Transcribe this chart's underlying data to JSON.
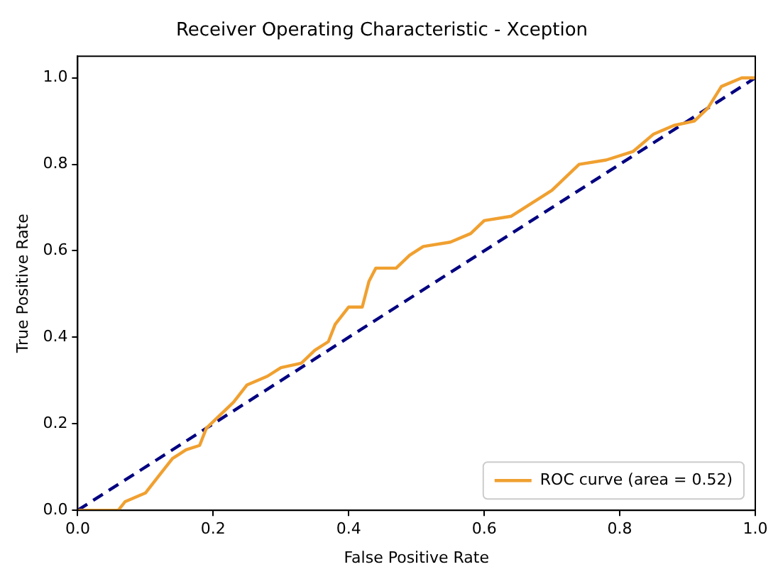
{
  "chart_data": {
    "type": "line",
    "title": "Receiver Operating Characteristic - Xception",
    "xlabel": "False Positive Rate",
    "ylabel": "True Positive Rate",
    "series": [
      {
        "name": "ROC curve (area = 0.52)",
        "color": "#f0a030",
        "line_style": "solid",
        "x": [
          0,
          0.06,
          0.07,
          0.1,
          0.12,
          0.14,
          0.16,
          0.18,
          0.19,
          0.21,
          0.23,
          0.25,
          0.28,
          0.3,
          0.33,
          0.35,
          0.37,
          0.38,
          0.4,
          0.42,
          0.43,
          0.44,
          0.47,
          0.49,
          0.51,
          0.55,
          0.58,
          0.6,
          0.64,
          0.67,
          0.7,
          0.72,
          0.74,
          0.78,
          0.82,
          0.85,
          0.88,
          0.91,
          0.93,
          0.95,
          0.98,
          1.0
        ],
        "values": [
          0,
          0,
          0.02,
          0.04,
          0.08,
          0.12,
          0.14,
          0.15,
          0.19,
          0.22,
          0.25,
          0.29,
          0.31,
          0.33,
          0.34,
          0.37,
          0.39,
          0.43,
          0.47,
          0.47,
          0.53,
          0.56,
          0.56,
          0.59,
          0.61,
          0.62,
          0.64,
          0.67,
          0.68,
          0.71,
          0.74,
          0.77,
          0.8,
          0.81,
          0.83,
          0.87,
          0.89,
          0.9,
          0.93,
          0.98,
          1.0,
          1.0
        ]
      },
      {
        "color": "#000080",
        "line_style": "dashed",
        "x": [
          0,
          1
        ],
        "values": [
          0,
          1
        ]
      }
    ],
    "xlim": [
      0,
      1
    ],
    "ylim": [
      0,
      1.05
    ],
    "xticks": [
      {
        "value": 0,
        "label": "0.0"
      },
      {
        "value": 0.2,
        "label": "0.2"
      },
      {
        "value": 0.4,
        "label": "0.4"
      },
      {
        "value": 0.6,
        "label": "0.6"
      },
      {
        "value": 0.8,
        "label": "0.8"
      },
      {
        "value": 1,
        "label": "1.0"
      }
    ],
    "yticks": [
      {
        "value": 0,
        "label": "0.0"
      },
      {
        "value": 0.2,
        "label": "0.2"
      },
      {
        "value": 0.4,
        "label": "0.4"
      },
      {
        "value": 0.6,
        "label": "0.6"
      },
      {
        "value": 0.8,
        "label": "0.8"
      },
      {
        "value": 1,
        "label": "1.0"
      }
    ],
    "grid": false,
    "legend": "bottom right",
    "marker": "none"
  }
}
